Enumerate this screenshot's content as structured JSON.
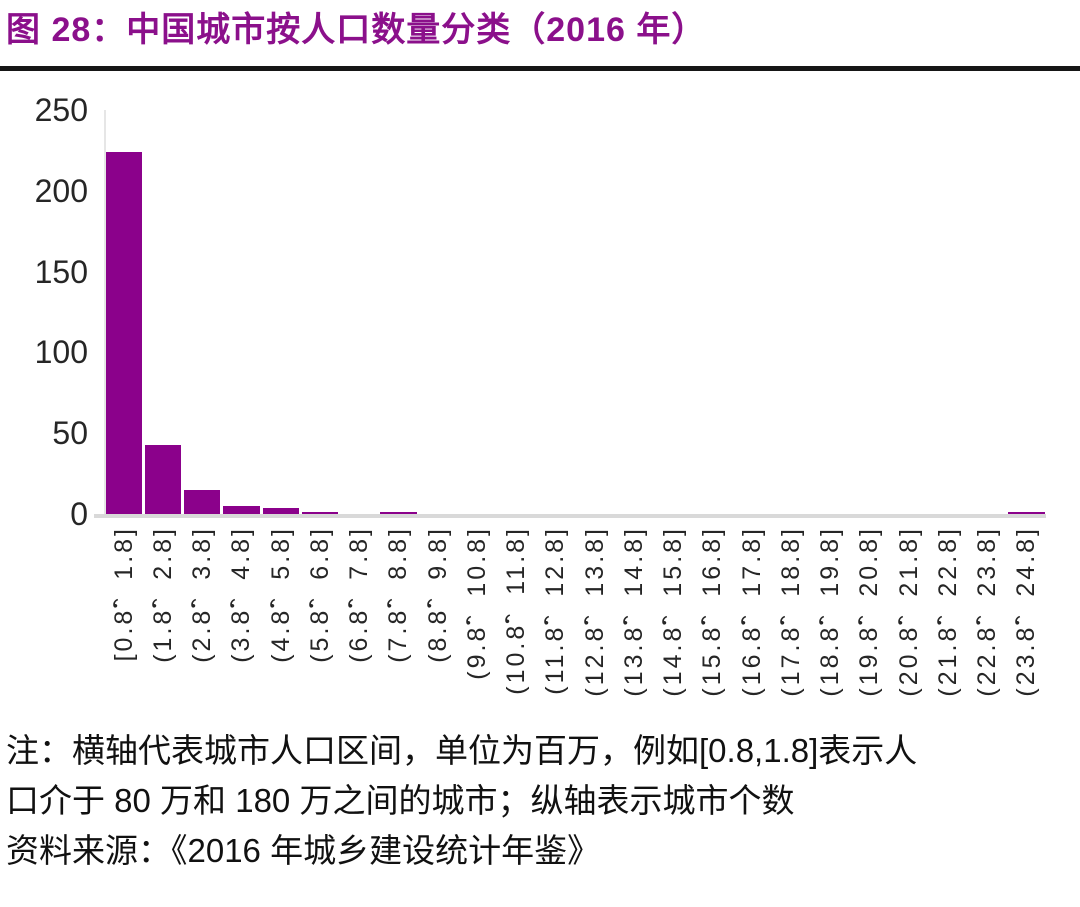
{
  "figure": {
    "title": "图 28：中国城市按人口数量分类（2016 年）",
    "note_line1": "注：横轴代表城市人口区间，单位为百万，例如[0.8,1.8]表示人",
    "note_line2": "口介于 80 万和 180 万之间的城市；纵轴表示城市个数",
    "source_line": "资料来源：《2016 年城乡建设统计年鉴》"
  },
  "colors": {
    "bar": "#8B018B",
    "title_text": "#8B108B",
    "axis_line": "#D9D9D9",
    "tick_text": "#262626",
    "note_text": "#111111"
  },
  "chart_data": {
    "type": "bar",
    "title": "图 28：中国城市按人口数量分类（2016 年）",
    "categories": [
      "[0.8，1.8]",
      "(1.8，2.8]",
      "(2.8，3.8]",
      "(3.8，4.8]",
      "(4.8，5.8]",
      "(5.8，6.8]",
      "(6.8，7.8]",
      "(7.8，8.8]",
      "(8.8，9.8]",
      "(9.8，10.8]",
      "(10.8，11.8]",
      "(11.8，12.8]",
      "(12.8，13.8]",
      "(13.8，14.8]",
      "(14.8，15.8]",
      "(15.8，16.8]",
      "(16.8，17.8]",
      "(17.8，18.8]",
      "(18.8，19.8]",
      "(19.8，20.8]",
      "(20.8，21.8]",
      "(21.8，22.8]",
      "(22.8，23.8]",
      "(23.8，24.8]"
    ],
    "values": [
      224,
      43,
      15,
      5,
      4,
      1,
      0,
      1,
      0,
      0,
      0,
      0,
      0,
      0,
      0,
      0,
      0,
      0,
      0,
      0,
      0,
      0,
      0,
      1
    ],
    "xlabel": "",
    "ylabel": "",
    "ylim": [
      0,
      250
    ],
    "yticks": [
      0,
      50,
      100,
      150,
      200,
      250
    ],
    "grid": false,
    "legend": false
  }
}
